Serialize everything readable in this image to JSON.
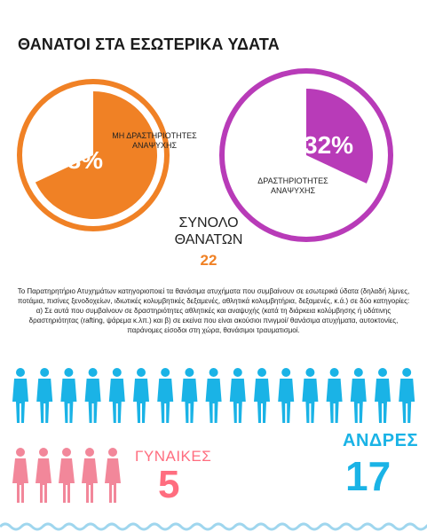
{
  "title": "ΘΑΝΑΤΟΙ ΣΤΑ ΕΣΩΤΕΡΙΚΑ ΥΔΑΤΑ",
  "chart_data": [
    {
      "type": "pie",
      "slices": [
        {
          "label": "ΜΗ ΔΡΑΣΤΗΡΙΟΤΗΤΕΣ ΑΝΑΨΥΧΗΣ",
          "value": 68,
          "value_label": "68%",
          "color": "#f08125"
        },
        {
          "label": "ΔΡΑΣΤΗΡΙΟΤΗΤΕΣ ΑΝΑΨΥΧΗΣ",
          "value": 32,
          "value_label": "32%",
          "color": "#b83bb8"
        }
      ],
      "total_label": "ΣΥΝΟΛΟ ΘΑΝΑΤΩΝ",
      "total_value": "22"
    },
    {
      "type": "pictogram",
      "series": [
        {
          "name": "ΑΝΔΡΕΣ",
          "value": 17,
          "color": "#1ab3e6"
        },
        {
          "name": "ΓΥΝΑΙΚΕΣ",
          "value": 5,
          "color": "#f2879a"
        }
      ]
    }
  ],
  "note": "Το Παρατηρητήριο Ατυχημάτων κατηγοριοποιεί τα θανάσιμα ατυχήματα που συμβαίνουν σε εσωτερικά ύδατα (δηλαδή λίμνες, ποτάμια, πισίνες ξενοδοχείων, ιδιωτικές κολυμβητικές δεξαμενές, αθλητικά κολυμβητήρια, δεξαμενές, κ.ά.) σε δύο κατηγορίες: α) Σε αυτά που συμβαίνουν σε δραστηριότητες αθλητικές και αναψυχής (κατά τη διάρκεια κολύμβησης ή υδάτινης δραστηριότητας (rafting, ψάρεμα κ.λπ.) και β) σε εκείνα που είναι ακούσιοι πνιγμοί/ θανάσιμα ατυχήματα, αυτοκτονίες, παράνομες είσοδοι στη χώρα, θανάσιμοι τραυματισμοί.",
  "colors": {
    "orange": "#f08125",
    "purple": "#b83bb8",
    "blue": "#1ab3e6",
    "pink": "#f2879a",
    "pink_text": "#ff6d7f",
    "wave": "#9fd6ee"
  },
  "icons": [
    "male-person-icon",
    "female-person-icon"
  ]
}
